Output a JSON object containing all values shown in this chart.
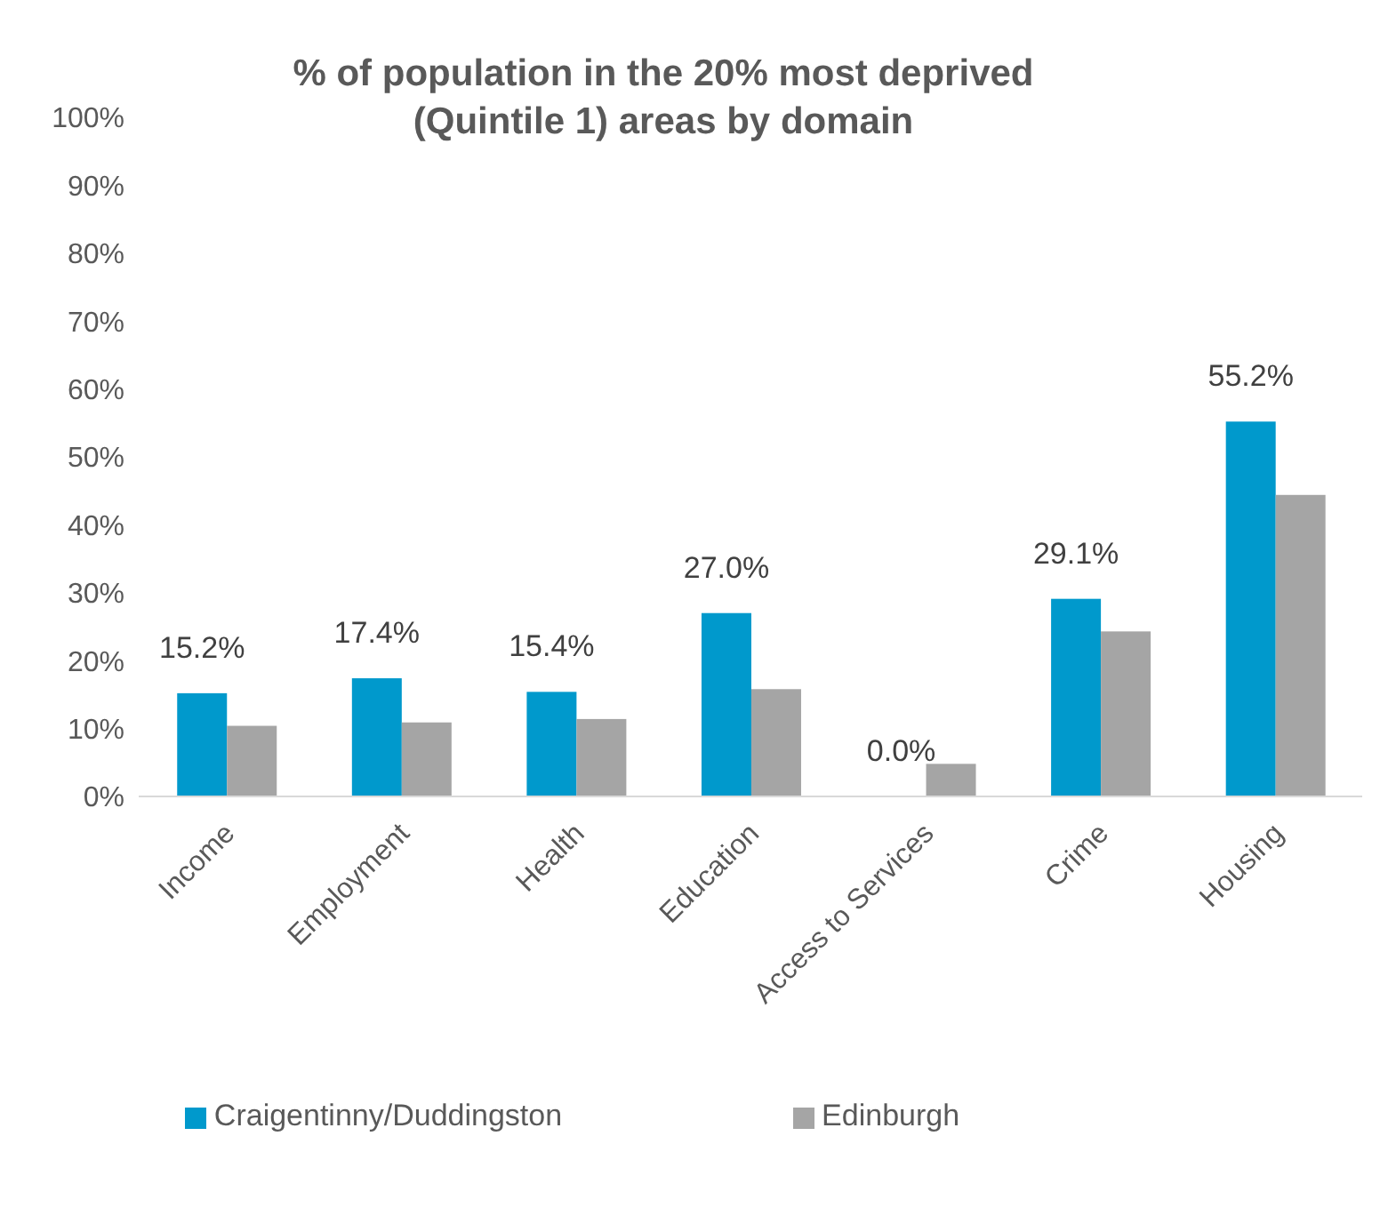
{
  "chart_data": {
    "type": "bar",
    "title": "% of population in the 20% most deprived (Quintile 1) areas by domain",
    "categories": [
      "Income",
      "Employment",
      "Health",
      "Education",
      "Access to Services",
      "Crime",
      "Housing"
    ],
    "series": [
      {
        "name": "Craigentinny/Duddingston",
        "color": "#0099cc",
        "values": [
          15.2,
          17.4,
          15.4,
          27.0,
          0.0,
          29.1,
          55.2
        ],
        "value_labels": [
          "15.2%",
          "17.4%",
          "15.4%",
          "27.0%",
          "0.0%",
          "29.1%",
          "55.2%"
        ]
      },
      {
        "name": "Edinburgh",
        "color": "#a5a5a5",
        "values": [
          10.4,
          10.9,
          11.4,
          15.8,
          4.8,
          24.3,
          44.4
        ]
      }
    ],
    "ylim": [
      0,
      100
    ],
    "yticks": [
      {
        "value": 0,
        "label": "0%"
      },
      {
        "value": 10,
        "label": "10%"
      },
      {
        "value": 20,
        "label": "20%"
      },
      {
        "value": 30,
        "label": "30%"
      },
      {
        "value": 40,
        "label": "40%"
      },
      {
        "value": 50,
        "label": "50%"
      },
      {
        "value": 60,
        "label": "60%"
      },
      {
        "value": 70,
        "label": "70%"
      },
      {
        "value": 80,
        "label": "80%"
      },
      {
        "value": 90,
        "label": "90%"
      },
      {
        "value": 100,
        "label": "100%"
      }
    ],
    "grid": false,
    "legend": "bottom"
  }
}
